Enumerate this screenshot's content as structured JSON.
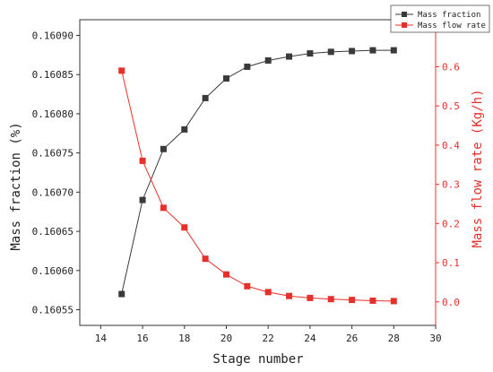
{
  "chart_data": {
    "type": "line",
    "xlabel": "Stage number",
    "ylabel_left": "Mass fraction (%)",
    "ylabel_right": "Mass flow rate (Kg/h)",
    "xlim": [
      13,
      30
    ],
    "ylim_left": [
      0.16053,
      0.16092
    ],
    "ylim_right": [
      -0.06,
      0.72
    ],
    "x_ticks": [
      "14",
      "16",
      "18",
      "20",
      "22",
      "24",
      "26",
      "28",
      "30"
    ],
    "y_left_ticks": [
      "0.16055",
      "0.16060",
      "0.16065",
      "0.16070",
      "0.16075",
      "0.16080",
      "0.16085",
      "0.16090"
    ],
    "y_right_ticks": [
      "0.0",
      "0.1",
      "0.2",
      "0.3",
      "0.4",
      "0.5",
      "0.6"
    ],
    "legend_position": "top-right",
    "grid": false,
    "series": [
      {
        "name": "Mass fraction",
        "axis": "left",
        "color": "#3a3a3a",
        "marker": "square",
        "x": [
          15,
          16,
          17,
          18,
          19,
          20,
          21,
          22,
          23,
          24,
          25,
          26,
          27,
          28
        ],
        "y": [
          0.16057,
          0.16069,
          0.160755,
          0.16078,
          0.16082,
          0.160845,
          0.16086,
          0.160868,
          0.160873,
          0.160877,
          0.160879,
          0.16088,
          0.160881,
          0.160881
        ]
      },
      {
        "name": "Mass flow rate",
        "axis": "right",
        "color": "#e8302a",
        "marker": "square",
        "x": [
          15,
          16,
          17,
          18,
          19,
          20,
          21,
          22,
          23,
          24,
          25,
          26,
          27,
          28
        ],
        "y": [
          0.59,
          0.36,
          0.24,
          0.19,
          0.11,
          0.07,
          0.04,
          0.025,
          0.015,
          0.01,
          0.007,
          0.005,
          0.003,
          0.002
        ]
      }
    ]
  }
}
